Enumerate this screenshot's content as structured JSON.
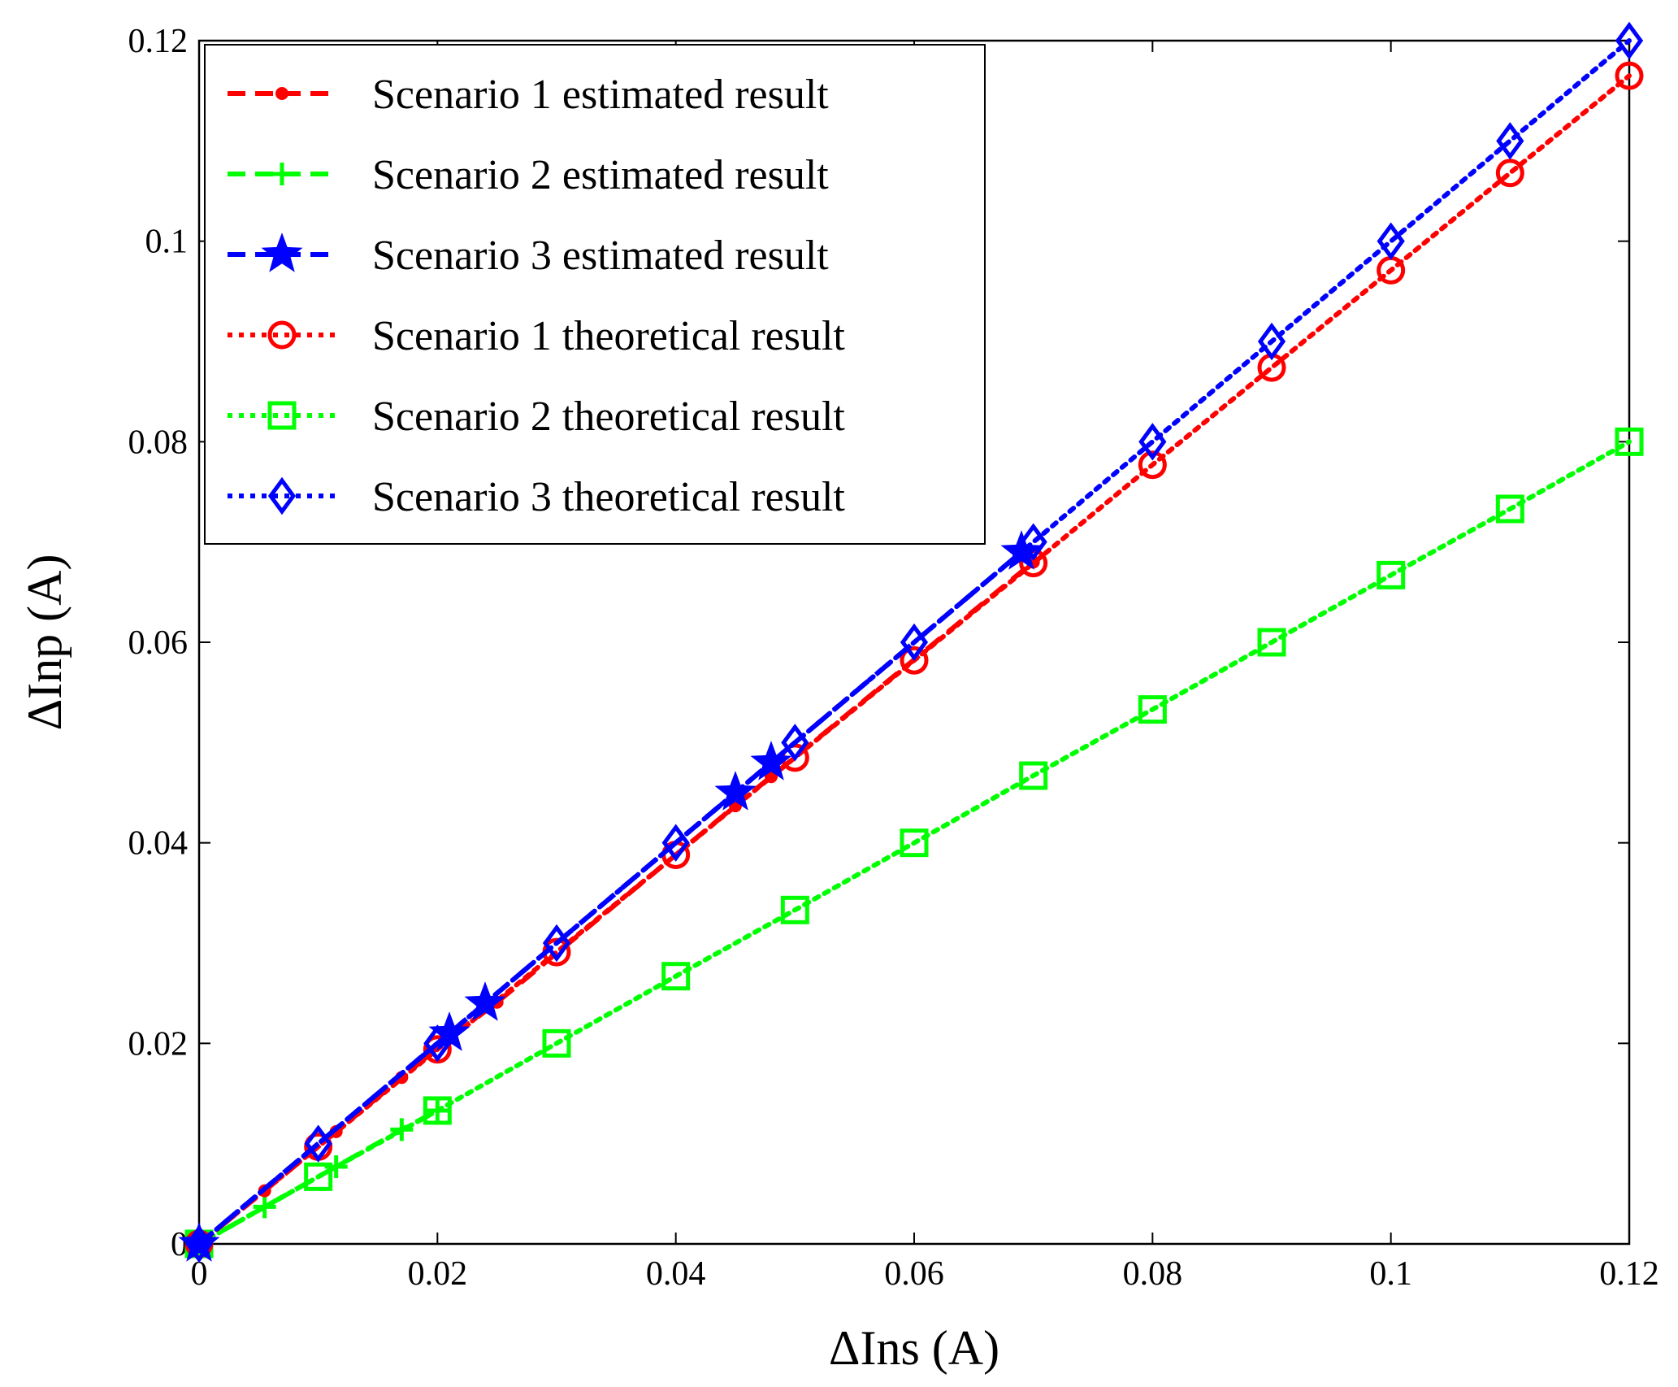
{
  "chart_data": {
    "type": "line",
    "title": "",
    "xlabel": "ΔIns (A)",
    "ylabel": "ΔInp (A)",
    "xlim": [
      0,
      0.12
    ],
    "ylim": [
      0,
      0.12
    ],
    "xticks": [
      0,
      0.02,
      0.04,
      0.06,
      0.08,
      0.1,
      0.12
    ],
    "xtick_labels": [
      "0",
      "0.02",
      "0.04",
      "0.06",
      "0.08",
      "0.1",
      "0.12"
    ],
    "yticks": [
      0,
      0.02,
      0.04,
      0.06,
      0.08,
      0.1,
      0.12
    ],
    "ytick_labels": [
      "0",
      "0.02",
      "0.04",
      "0.06",
      "0.08",
      "0.1",
      "0.12"
    ],
    "grid": false,
    "legend_position": "top-left",
    "series": [
      {
        "name": "Scenario 1 estimated result",
        "color": "#ff0000",
        "line": "dashed",
        "marker": "dot",
        "x": [
          0,
          0.0055,
          0.0115,
          0.017,
          0.021,
          0.025,
          0.045,
          0.048,
          0.07
        ],
        "y": [
          0,
          0.0053,
          0.0112,
          0.0166,
          0.0205,
          0.0241,
          0.0437,
          0.0466,
          0.068
        ]
      },
      {
        "name": "Scenario 2 estimated result",
        "color": "#00ff00",
        "line": "dashed",
        "marker": "plus",
        "x": [
          0,
          0.0055,
          0.0115,
          0.017,
          0.02
        ],
        "y": [
          0,
          0.0037,
          0.0077,
          0.0114,
          0.0133
        ]
      },
      {
        "name": "Scenario 3 estimated result",
        "color": "#0000ff",
        "line": "dashed",
        "marker": "star",
        "x": [
          0,
          0.021,
          0.024,
          0.045,
          0.048,
          0.069
        ],
        "y": [
          0,
          0.021,
          0.024,
          0.045,
          0.048,
          0.069
        ]
      },
      {
        "name": "Scenario 1 theoretical result",
        "color": "#ff0000",
        "line": "dotted",
        "marker": "circle",
        "x": [
          0,
          0.01,
          0.02,
          0.03,
          0.04,
          0.05,
          0.06,
          0.07,
          0.08,
          0.09,
          0.1,
          0.11,
          0.12
        ],
        "y": [
          0,
          0.0097,
          0.0194,
          0.0291,
          0.0388,
          0.0485,
          0.0582,
          0.0679,
          0.0777,
          0.0874,
          0.0971,
          0.1068,
          0.1165
        ]
      },
      {
        "name": "Scenario 2 theoretical result",
        "color": "#00ff00",
        "line": "dotted",
        "marker": "square",
        "x": [
          0,
          0.01,
          0.02,
          0.03,
          0.04,
          0.05,
          0.06,
          0.07,
          0.08,
          0.09,
          0.1,
          0.11,
          0.12
        ],
        "y": [
          0,
          0.0067,
          0.0133,
          0.02,
          0.0267,
          0.0333,
          0.04,
          0.0467,
          0.0533,
          0.06,
          0.0667,
          0.0733,
          0.08
        ]
      },
      {
        "name": "Scenario 3 theoretical result",
        "color": "#0000ff",
        "line": "dotted",
        "marker": "diamond",
        "x": [
          0,
          0.01,
          0.02,
          0.03,
          0.04,
          0.05,
          0.06,
          0.07,
          0.08,
          0.09,
          0.1,
          0.11,
          0.12
        ],
        "y": [
          0,
          0.01,
          0.02,
          0.03,
          0.04,
          0.05,
          0.06,
          0.07,
          0.08,
          0.09,
          0.1,
          0.11,
          0.12
        ]
      }
    ]
  }
}
